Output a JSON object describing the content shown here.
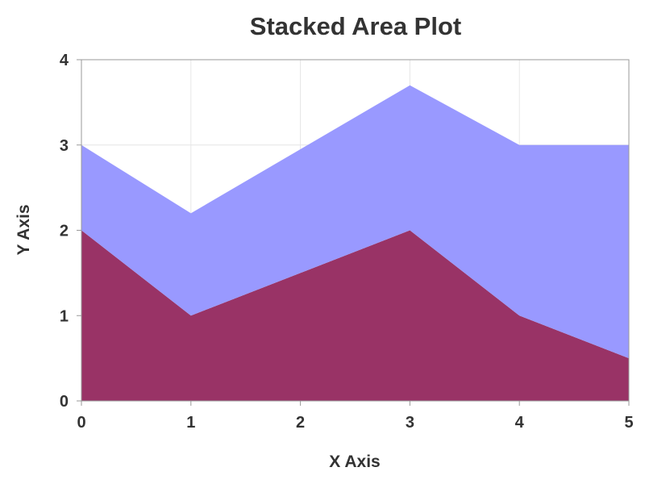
{
  "chart_data": {
    "type": "area",
    "stacked": true,
    "title": "Stacked Area Plot",
    "xlabel": "X Axis",
    "ylabel": "Y Axis",
    "x": [
      0,
      1,
      2,
      3,
      4,
      5
    ],
    "xlim": [
      0,
      5
    ],
    "ylim": [
      0,
      4
    ],
    "xticks": [
      0,
      1,
      2,
      3,
      4,
      5
    ],
    "yticks": [
      0,
      1,
      2,
      3,
      4
    ],
    "grid": true,
    "series": [
      {
        "values": [
          2,
          1,
          1.5,
          2,
          1,
          0.5
        ],
        "color": "#993366"
      },
      {
        "values": [
          1,
          1.2,
          1.45,
          1.7,
          2,
          2.5
        ],
        "color": "#9999ff"
      }
    ],
    "colors": {
      "grid": "#e6e6e6",
      "frame": "#999999",
      "text": "#333333"
    }
  }
}
